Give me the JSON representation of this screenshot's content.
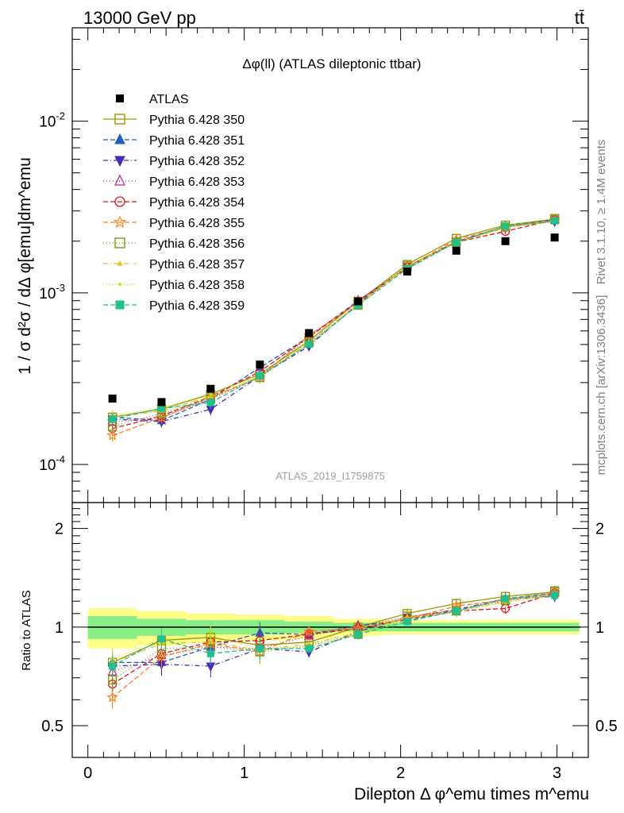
{
  "header": {
    "left": "13000 GeV pp",
    "right": "tt̄"
  },
  "side_labels": {
    "rivet": "Rivet 3.1.10, ≥ 1.4M events",
    "mcplots": "mcplots.cern.ch [arXiv:1306.3436]"
  },
  "chart_data": {
    "type": "line",
    "title": "Δφ(ll) (ATLAS dileptonic ttbar)",
    "watermark": "ATLAS_2019_I1759875",
    "xlabel": "Dilepton Δ φ^emu times m^emu",
    "ylabel": "1 / σ  d²σ / dΔ φ[emu]dm^emu",
    "ratio_ylabel": "Ratio to ATLAS",
    "xlim": [
      -0.1,
      3.2
    ],
    "ylim": [
      6e-05,
      0.035
    ],
    "yscale": "log",
    "ratio_ylim": [
      0.4,
      2.4
    ],
    "x_ticks": [
      "0",
      "1",
      "2",
      "3"
    ],
    "y_ticks": [
      "10^-4",
      "10^-3",
      "10^-2"
    ],
    "ratio_ticks": [
      "0.5",
      "1",
      "2"
    ],
    "x": [
      0.157,
      0.471,
      0.785,
      1.1,
      1.414,
      1.728,
      2.042,
      2.356,
      2.67,
      2.985
    ],
    "data": {
      "name": "ATLAS",
      "values": [
        0.000242,
        0.000231,
        0.000276,
        0.000382,
        0.000583,
        0.000892,
        0.00133,
        0.00176,
        0.002,
        0.0021
      ],
      "band_inner": [
        0.08,
        0.06,
        0.05,
        0.05,
        0.04,
        0.03,
        0.03,
        0.03,
        0.03,
        0.03
      ],
      "band_outer": [
        0.14,
        0.12,
        0.1,
        0.09,
        0.08,
        0.06,
        0.05,
        0.05,
        0.05,
        0.05
      ]
    },
    "series": [
      {
        "name": "Pythia 6.428 350",
        "color": "#999900",
        "marker": "square-open",
        "dash": "",
        "ratio": [
          0.78,
          0.91,
          0.93,
          0.88,
          0.9,
          1.0,
          1.1,
          1.18,
          1.24,
          1.28
        ]
      },
      {
        "name": "Pythia 6.428 351",
        "color": "#1f5fbf",
        "marker": "triangle-up",
        "dash": "6,3",
        "ratio": [
          0.78,
          0.78,
          0.87,
          0.96,
          0.95,
          1.01,
          1.05,
          1.12,
          1.22,
          1.27
        ]
      },
      {
        "name": "Pythia 6.428 352",
        "color": "#4b2ab5",
        "marker": "triangle-down",
        "dash": "6,3,1,3",
        "ratio": [
          0.76,
          0.77,
          0.76,
          0.86,
          0.84,
          0.97,
          1.07,
          1.13,
          1.22,
          1.24
        ]
      },
      {
        "name": "Pythia 6.428 353",
        "color": "#c02a8a",
        "marker": "triangle-open",
        "dash": "1,3",
        "ratio": [
          0.73,
          0.82,
          0.87,
          0.86,
          0.94,
          1.01,
          1.07,
          1.13,
          1.2,
          1.27
        ]
      },
      {
        "name": "Pythia 6.428 354",
        "color": "#e0101e",
        "marker": "circle-open",
        "dash": "6,3",
        "ratio": [
          0.67,
          0.83,
          0.9,
          0.91,
          0.95,
          0.99,
          1.06,
          1.12,
          1.14,
          1.27
        ]
      },
      {
        "name": "Pythia 6.428 355",
        "color": "#ff7f1a",
        "marker": "star-open",
        "dash": "6,3",
        "ratio": [
          0.61,
          0.81,
          0.89,
          0.84,
          0.97,
          0.99,
          1.06,
          1.16,
          1.21,
          1.27
        ]
      },
      {
        "name": "Pythia 6.428 356",
        "color": "#7f9a1a",
        "marker": "square-open",
        "dash": "1,3",
        "ratio": [
          0.69,
          0.86,
          0.87,
          0.84,
          0.88,
          0.95,
          1.08,
          1.12,
          1.21,
          1.29
        ]
      },
      {
        "name": "Pythia 6.428 357",
        "color": "#e6c21a",
        "marker": "tri-small",
        "dash": "6,3,1,3",
        "ratio": [
          0.78,
          0.89,
          0.9,
          0.85,
          0.89,
          0.96,
          1.07,
          1.11,
          1.2,
          1.25
        ]
      },
      {
        "name": "Pythia 6.428 358",
        "color": "#c8e020",
        "marker": "dot",
        "dash": "1,2",
        "ratio": [
          0.8,
          0.92,
          0.94,
          0.86,
          0.87,
          0.95,
          1.05,
          1.12,
          1.19,
          1.25
        ]
      },
      {
        "name": "Pythia 6.428 359",
        "color": "#20c090",
        "marker": "square-filled",
        "dash": "6,3",
        "ratio": [
          0.76,
          0.92,
          0.83,
          0.86,
          0.86,
          0.95,
          1.04,
          1.12,
          1.22,
          1.25
        ]
      }
    ]
  }
}
